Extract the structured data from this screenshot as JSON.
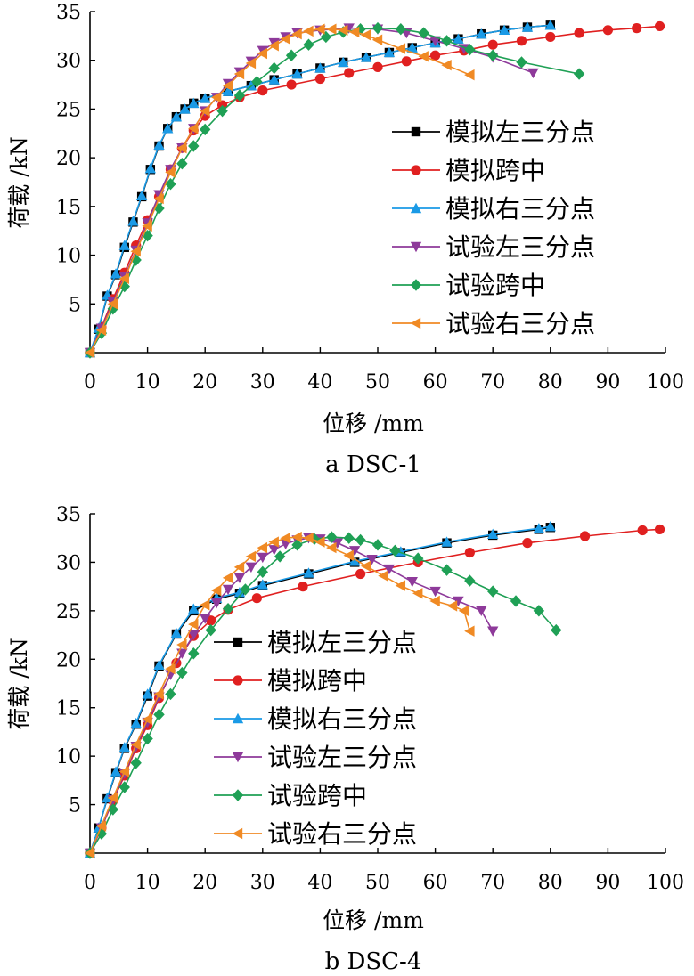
{
  "chart_data": [
    {
      "type": "line",
      "title": "a DSC-1",
      "xlabel": "位移 /mm",
      "ylabel": "荷载 /kN",
      "xlim": [
        0,
        100
      ],
      "ylim": [
        0,
        35
      ],
      "xticks": [
        0,
        10,
        20,
        30,
        40,
        50,
        60,
        70,
        80,
        90,
        100
      ],
      "yticks": [
        5,
        10,
        15,
        20,
        25,
        30,
        35
      ],
      "legend_position": "right",
      "series": [
        {
          "name": "模拟左三分点",
          "color": "#000000",
          "marker": "square",
          "x": [
            0,
            1.5,
            3,
            4.5,
            6,
            7.5,
            9,
            10.5,
            12,
            13.5,
            15,
            16.5,
            18,
            20,
            24,
            28,
            32,
            36,
            40,
            44,
            48,
            52,
            56,
            60,
            64,
            68,
            72,
            76,
            80
          ],
          "y": [
            0,
            2.4,
            5.8,
            8,
            10.8,
            13.4,
            16,
            18.8,
            21.2,
            23,
            24.2,
            25,
            25.6,
            26.1,
            26.8,
            27.4,
            28,
            28.6,
            29.2,
            29.8,
            30.3,
            30.8,
            31.3,
            31.8,
            32.2,
            32.7,
            33.1,
            33.4,
            33.6
          ]
        },
        {
          "name": "模拟跨中",
          "color": "#e02020",
          "marker": "circle",
          "x": [
            0,
            2,
            4,
            6,
            8,
            10,
            12,
            14,
            16,
            18,
            20,
            23,
            26,
            30,
            35,
            40,
            45,
            50,
            55,
            60,
            65,
            70,
            75,
            80,
            85,
            90,
            95,
            99
          ],
          "y": [
            0,
            2.6,
            5.5,
            8.2,
            11,
            13.6,
            16,
            18.8,
            21,
            22.8,
            24.3,
            25.4,
            26.2,
            26.9,
            27.5,
            28.1,
            28.7,
            29.3,
            29.9,
            30.5,
            31,
            31.6,
            32,
            32.4,
            32.8,
            33.1,
            33.3,
            33.5
          ]
        },
        {
          "name": "模拟右三分点",
          "color": "#1a9ae6",
          "marker": "triangle-up",
          "x": [
            0,
            1.5,
            3,
            4.5,
            6,
            7.5,
            9,
            10.5,
            12,
            13.5,
            15,
            16.5,
            18,
            20,
            24,
            28,
            32,
            36,
            40,
            44,
            48,
            52,
            56,
            60,
            64,
            68,
            72,
            76,
            80
          ],
          "y": [
            0,
            2.5,
            5.9,
            8.1,
            11,
            13.5,
            16.1,
            18.9,
            21.3,
            23,
            24.2,
            25,
            25.6,
            26.1,
            26.8,
            27.4,
            28,
            28.6,
            29.2,
            29.8,
            30.3,
            30.8,
            31.3,
            31.8,
            32.2,
            32.7,
            33.1,
            33.4,
            33.6
          ]
        },
        {
          "name": "试验左三分点",
          "color": "#8e3a9a",
          "marker": "triangle-down",
          "x": [
            0,
            2,
            4,
            6,
            8,
            10,
            12,
            14,
            16,
            18,
            20,
            22,
            24,
            26,
            28,
            30,
            32,
            34,
            36,
            40,
            45,
            50,
            55,
            60,
            65,
            70,
            77
          ],
          "y": [
            0,
            2.5,
            5.2,
            7.8,
            10.5,
            13.3,
            16.2,
            18.8,
            21,
            23,
            24.8,
            26.2,
            27.6,
            28.8,
            29.9,
            31,
            31.8,
            32.4,
            32.8,
            33.1,
            33.3,
            33.2,
            32.8,
            32,
            31.2,
            30.3,
            28.7
          ]
        },
        {
          "name": "试验跨中",
          "color": "#1fa055",
          "marker": "diamond",
          "x": [
            0,
            2,
            4,
            6,
            8,
            10,
            12,
            14,
            16,
            18,
            20,
            23,
            26,
            29,
            32,
            35,
            38,
            41,
            44,
            47,
            50,
            54,
            58,
            62,
            66,
            70,
            75,
            85
          ],
          "y": [
            0,
            2,
            4.5,
            6.8,
            9.5,
            12,
            14.8,
            17.3,
            19.4,
            21.2,
            22.9,
            24.8,
            26.4,
            27.8,
            29.2,
            30.5,
            31.6,
            32.4,
            32.9,
            33.2,
            33.3,
            33.2,
            32.8,
            32,
            31.1,
            30.5,
            29.8,
            28.6
          ]
        },
        {
          "name": "试验右三分点",
          "color": "#f08a24",
          "marker": "triangle-left",
          "x": [
            0,
            2,
            4,
            6,
            8,
            10,
            12,
            14,
            16,
            18,
            20,
            22,
            24,
            26,
            28,
            30,
            32,
            34,
            36,
            38,
            40,
            42,
            44,
            46,
            48,
            50,
            54,
            58,
            62,
            66
          ],
          "y": [
            0,
            2.3,
            5,
            7.6,
            10.4,
            13,
            15.8,
            18.5,
            21,
            23,
            24.8,
            26.2,
            27.4,
            28.6,
            29.7,
            30.7,
            31.5,
            32.2,
            32.7,
            33,
            33.2,
            33.2,
            33.1,
            32.9,
            32.6,
            32.1,
            31.2,
            30.4,
            29.5,
            28.5
          ]
        }
      ]
    },
    {
      "type": "line",
      "title": "b DSC-4",
      "xlabel": "位移 /mm",
      "ylabel": "荷载 /kN",
      "xlim": [
        0,
        100
      ],
      "ylim": [
        0,
        35
      ],
      "xticks": [
        0,
        10,
        20,
        30,
        40,
        50,
        60,
        70,
        80,
        90,
        100
      ],
      "yticks": [
        5,
        10,
        15,
        20,
        25,
        30,
        35
      ],
      "legend_position": "center-left",
      "series": [
        {
          "name": "模拟左三分点",
          "color": "#000000",
          "marker": "square",
          "x": [
            0,
            1.5,
            3,
            4.5,
            6,
            8,
            10,
            12,
            15,
            18,
            22,
            26,
            30,
            38,
            46,
            54,
            62,
            70,
            78,
            80
          ],
          "y": [
            0,
            2.6,
            5.6,
            8.3,
            10.8,
            13.3,
            16.2,
            19.3,
            22.6,
            25,
            26.2,
            26.8,
            27.6,
            28.8,
            30,
            31,
            32,
            32.8,
            33.4,
            33.6
          ]
        },
        {
          "name": "模拟跨中",
          "color": "#e02020",
          "marker": "circle",
          "x": [
            0,
            2,
            4,
            6,
            8,
            10,
            12,
            15,
            18,
            21,
            24,
            29,
            37,
            47,
            57,
            66,
            76,
            86,
            96,
            99
          ],
          "y": [
            0,
            2.6,
            5.4,
            8,
            10.8,
            13.2,
            16,
            19.6,
            22.4,
            24,
            25.1,
            26.3,
            27.5,
            28.8,
            30,
            31,
            32,
            32.7,
            33.3,
            33.4
          ]
        },
        {
          "name": "模拟右三分点",
          "color": "#1a9ae6",
          "marker": "triangle-up",
          "x": [
            0,
            1.5,
            3,
            4.5,
            6,
            8,
            10,
            12,
            15,
            18,
            22,
            26,
            30,
            38,
            46,
            54,
            62,
            70,
            78,
            80
          ],
          "y": [
            0,
            2.6,
            5.7,
            8.4,
            10.9,
            13.4,
            16.4,
            19.4,
            22.7,
            25.2,
            26.3,
            26.9,
            27.7,
            28.9,
            30.1,
            31.1,
            32.1,
            32.9,
            33.5,
            33.7
          ]
        },
        {
          "name": "试验左三分点",
          "color": "#8e3a9a",
          "marker": "triangle-down",
          "x": [
            0,
            2,
            4,
            6,
            8,
            10,
            12,
            14,
            16,
            18,
            20,
            22,
            24,
            26,
            28,
            30,
            32,
            34,
            36,
            38,
            40,
            43,
            46,
            49,
            52,
            56,
            60,
            64,
            68,
            70
          ],
          "y": [
            0,
            2.6,
            5.5,
            8.2,
            11,
            13.5,
            16.1,
            18.4,
            20.6,
            22.5,
            24.2,
            25.8,
            27.2,
            28.4,
            29.5,
            30.5,
            31.3,
            31.9,
            32.3,
            32.5,
            32.4,
            32,
            31.2,
            30.3,
            29.3,
            28,
            27,
            26,
            25,
            22.9
          ]
        },
        {
          "name": "试验跨中",
          "color": "#1fa055",
          "marker": "diamond",
          "x": [
            0,
            2,
            4,
            6,
            8,
            10,
            12,
            14,
            16,
            18,
            21,
            24,
            27,
            30,
            33,
            36,
            39,
            42,
            45,
            47,
            50,
            53,
            57,
            62,
            66,
            70,
            74,
            78,
            81
          ],
          "y": [
            0,
            2,
            4.5,
            6.8,
            9.3,
            11.8,
            14.3,
            16.4,
            18.6,
            20.6,
            23,
            25.2,
            27.2,
            29,
            30.6,
            31.8,
            32.4,
            32.6,
            32.5,
            32.3,
            31.8,
            31.2,
            30.4,
            29.2,
            28.1,
            27,
            26,
            25,
            23
          ]
        },
        {
          "name": "试验右三分点",
          "color": "#f08a24",
          "marker": "triangle-left",
          "x": [
            0,
            2,
            4,
            6,
            8,
            10,
            12,
            14,
            16,
            18,
            20,
            22,
            24,
            26,
            28,
            30,
            32,
            34,
            36,
            38,
            40,
            42,
            45,
            48,
            51,
            54,
            57,
            60,
            63,
            65,
            66
          ],
          "y": [
            0,
            2.8,
            5.7,
            8.4,
            11.2,
            13.8,
            16.4,
            19,
            21.5,
            23.6,
            25.6,
            27.1,
            28.4,
            29.5,
            30.6,
            31.5,
            32.1,
            32.5,
            32.6,
            32.5,
            32.1,
            31.5,
            30.7,
            29.6,
            28.6,
            27.6,
            26.8,
            26,
            25.5,
            25,
            22.9
          ]
        }
      ]
    }
  ]
}
